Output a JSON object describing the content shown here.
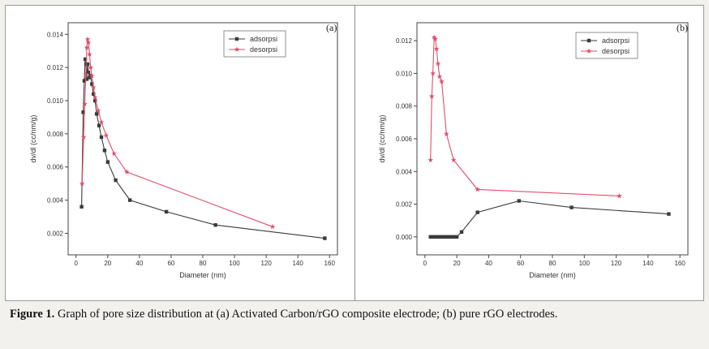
{
  "chart_data": [
    {
      "type": "line",
      "panel_label": "(a)",
      "xlabel": "Diameter (nm)",
      "ylabel": "dv/dl (cc/nm/g)",
      "xlim": [
        -5,
        165
      ],
      "ylim": [
        0.0007,
        0.0147
      ],
      "x_ticks": [
        0,
        20,
        40,
        60,
        80,
        100,
        120,
        140,
        160
      ],
      "x_tick_labels": [
        "0",
        "20",
        "40",
        "60",
        "80",
        "100",
        "120",
        "140",
        "160"
      ],
      "y_ticks": [
        0.002,
        0.004,
        0.006,
        0.008,
        0.01,
        0.012,
        0.014
      ],
      "y_tick_labels": [
        "0.002",
        "0.004",
        "0.006",
        "0.008",
        "0.010",
        "0.012",
        "0.014"
      ],
      "legend_position": "top-right",
      "series": [
        {
          "name": "adsorpsi",
          "color": "#3a3a3a",
          "marker": "square",
          "x": [
            3.5,
            4.5,
            5.2,
            5.8,
            6.3,
            6.8,
            7.3,
            7.8,
            8.5,
            9.2,
            10,
            11,
            12,
            13,
            14.5,
            16,
            18,
            20,
            25,
            34,
            57,
            88,
            157
          ],
          "y": [
            0.0036,
            0.0093,
            0.0112,
            0.0125,
            0.0122,
            0.0113,
            0.0122,
            0.0117,
            0.0114,
            0.0115,
            0.011,
            0.0104,
            0.01,
            0.0092,
            0.0085,
            0.0078,
            0.007,
            0.0063,
            0.0052,
            0.004,
            0.0033,
            0.0025,
            0.0017
          ]
        },
        {
          "name": "desorpsi",
          "color": "#e0506a",
          "marker": "star",
          "x": [
            3.8,
            4.8,
            5.5,
            6.2,
            6.8,
            7.3,
            7.8,
            8.5,
            9.2,
            10,
            11,
            12,
            14,
            16,
            19,
            24,
            32,
            124
          ],
          "y": [
            0.005,
            0.0078,
            0.0098,
            0.0116,
            0.0132,
            0.0137,
            0.0135,
            0.0128,
            0.012,
            0.0115,
            0.0108,
            0.0102,
            0.0094,
            0.0087,
            0.0079,
            0.0068,
            0.0057,
            0.0024
          ]
        }
      ]
    },
    {
      "type": "line",
      "panel_label": "(b)",
      "xlabel": "Diameter (nm)",
      "ylabel": "dv/dl (cc/nm/g)",
      "xlim": [
        -5,
        165
      ],
      "ylim": [
        -0.0011,
        0.0131
      ],
      "x_ticks": [
        0,
        20,
        40,
        60,
        80,
        100,
        120,
        140,
        160
      ],
      "x_tick_labels": [
        "0",
        "20",
        "40",
        "60",
        "80",
        "100",
        "120",
        "140",
        "160"
      ],
      "y_ticks": [
        0.0,
        0.002,
        0.004,
        0.006,
        0.008,
        0.01,
        0.012
      ],
      "y_tick_labels": [
        "0.000",
        "0.002",
        "0.004",
        "0.006",
        "0.008",
        "0.010",
        "0.012"
      ],
      "legend_position": "top-right",
      "series": [
        {
          "name": "adsorpsi",
          "color": "#3a3a3a",
          "marker": "square",
          "x": [
            3.5,
            5,
            6.5,
            8,
            9.5,
            11,
            12.5,
            14,
            15.5,
            17,
            18.5,
            20,
            23,
            33,
            59,
            92,
            153
          ],
          "y": [
            0,
            0,
            0,
            0,
            0,
            0,
            0,
            0,
            0,
            0,
            0,
            0,
            0.0003,
            0.0015,
            0.0022,
            0.0018,
            0.0014
          ]
        },
        {
          "name": "desorpsi",
          "color": "#e0506a",
          "marker": "star",
          "x": [
            3.5,
            4.3,
            5,
            5.8,
            6.5,
            7.3,
            8.2,
            9.2,
            10.5,
            13.5,
            18,
            33,
            122
          ],
          "y": [
            0.0047,
            0.0086,
            0.01,
            0.0122,
            0.0121,
            0.0115,
            0.0106,
            0.0098,
            0.0095,
            0.0063,
            0.0047,
            0.0029,
            0.0025
          ]
        }
      ]
    }
  ],
  "caption": {
    "label": "Figure 1.",
    "text": " Graph of pore size distribution at (a) Activated Carbon/rGO composite electrode; (b) pure rGO electrodes."
  }
}
